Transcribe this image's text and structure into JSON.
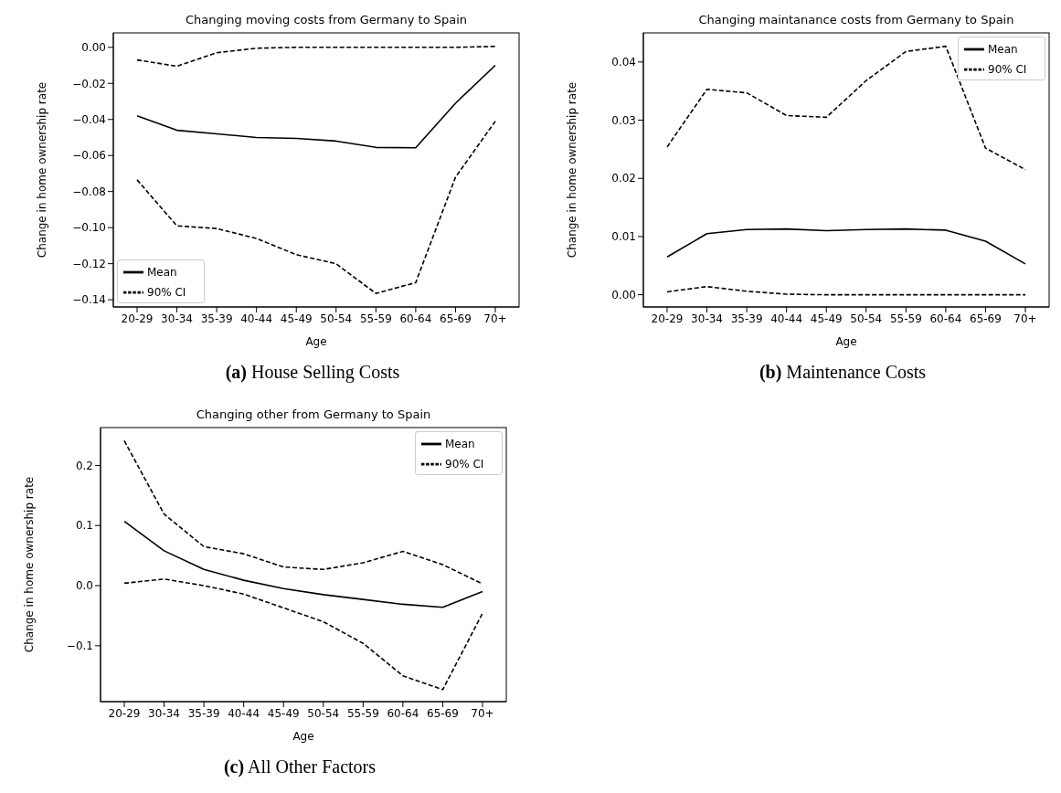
{
  "chart_data": [
    {
      "type": "line",
      "title": "Changing moving costs from Germany to Spain",
      "xlabel": "Age",
      "ylabel": "Change in home ownership rate",
      "annotations": [
        "(a) House Selling Costs"
      ],
      "categories": [
        "20-29",
        "30-34",
        "35-39",
        "40-44",
        "45-49",
        "50-54",
        "55-59",
        "60-64",
        "65-69",
        "70+"
      ],
      "series": [
        {
          "name": "Mean",
          "color": "#000000",
          "line_style": "solid",
          "values": [
            -0.038,
            -0.046,
            -0.048,
            -0.05,
            -0.0505,
            -0.052,
            -0.0555,
            -0.0557,
            -0.031,
            -0.01
          ]
        },
        {
          "name": "90% CI",
          "color": "#000000",
          "line_style": "dashed",
          "values": [
            -0.007,
            -0.0105,
            -0.003,
            -0.0005,
            0,
            0,
            0,
            0,
            0,
            0.0005
          ]
        },
        {
          "color": "#000000",
          "line_style": "dashed",
          "values": [
            -0.0735,
            -0.099,
            -0.1005,
            -0.106,
            -0.115,
            -0.12,
            -0.1365,
            -0.1305,
            -0.072,
            -0.041
          ]
        }
      ],
      "ylim": [
        -0.144,
        0.008
      ],
      "yticks": [
        {
          "value": -0.14,
          "label": "−0.14"
        },
        {
          "value": -0.12,
          "label": "−0.12"
        },
        {
          "value": -0.1,
          "label": "−0.10"
        },
        {
          "value": -0.08,
          "label": "−0.08"
        },
        {
          "value": -0.06,
          "label": "−0.06"
        },
        {
          "value": -0.04,
          "label": "−0.04"
        },
        {
          "value": -0.02,
          "label": "−0.02"
        },
        {
          "value": 0,
          "label": "0.00"
        }
      ],
      "grid": false,
      "legend": "bottom left",
      "marker": "none"
    },
    {
      "type": "line",
      "title": "Changing maintanance costs from Germany to Spain",
      "xlabel": "Age",
      "ylabel": "Change in home ownership rate",
      "annotations": [
        "(b) Maintenance Costs"
      ],
      "categories": [
        "20-29",
        "30-34",
        "35-39",
        "40-44",
        "45-49",
        "50-54",
        "55-59",
        "60-64",
        "65-69",
        "70+"
      ],
      "series": [
        {
          "name": "Mean",
          "color": "#000000",
          "line_style": "solid",
          "values": [
            0.0065,
            0.0105,
            0.0112,
            0.0113,
            0.011,
            0.0112,
            0.0113,
            0.0111,
            0.0092,
            0.0053
          ]
        },
        {
          "name": "90% CI",
          "color": "#000000",
          "line_style": "dashed",
          "values": [
            0.0254,
            0.0353,
            0.0347,
            0.0308,
            0.0305,
            0.0368,
            0.0418,
            0.0427,
            0.0252,
            0.0215
          ]
        },
        {
          "color": "#000000",
          "line_style": "dashed",
          "values": [
            0.0005,
            0.0014,
            0.0006,
            0.0001,
            0,
            0,
            0,
            0,
            0,
            0
          ]
        }
      ],
      "ylim": [
        -0.0021,
        0.045
      ],
      "yticks": [
        {
          "value": 0,
          "label": "0.00"
        },
        {
          "value": 0.01,
          "label": "0.01"
        },
        {
          "value": 0.02,
          "label": "0.02"
        },
        {
          "value": 0.03,
          "label": "0.03"
        },
        {
          "value": 0.04,
          "label": "0.04"
        }
      ],
      "grid": false,
      "legend": "top right",
      "marker": "none"
    },
    {
      "type": "line",
      "title": "Changing other from Germany to Spain",
      "xlabel": "Age",
      "ylabel": "Change in home ownership rate",
      "annotations": [
        "(c) All Other Factors"
      ],
      "categories": [
        "20-29",
        "30-34",
        "35-39",
        "40-44",
        "45-49",
        "50-54",
        "55-59",
        "60-64",
        "65-69",
        "70+"
      ],
      "series": [
        {
          "name": "Mean",
          "color": "#000000",
          "line_style": "solid",
          "values": [
            0.107,
            0.058,
            0.027,
            0.009,
            -0.005,
            -0.015,
            -0.023,
            -0.031,
            -0.036,
            -0.01
          ]
        },
        {
          "name": "90% CI",
          "color": "#000000",
          "line_style": "dashed",
          "values": [
            0.241,
            0.119,
            0.065,
            0.053,
            0.031,
            0.027,
            0.038,
            0.057,
            0.035,
            0.003
          ]
        },
        {
          "color": "#000000",
          "line_style": "dashed",
          "values": [
            0.004,
            0.011,
            0,
            -0.014,
            -0.037,
            -0.06,
            -0.096,
            -0.15,
            -0.173,
            -0.046
          ]
        }
      ],
      "ylim": [
        -0.193,
        0.263
      ],
      "yticks": [
        {
          "value": -0.1,
          "label": "−0.1"
        },
        {
          "value": 0,
          "label": "0.0"
        },
        {
          "value": 0.1,
          "label": "0.1"
        },
        {
          "value": 0.2,
          "label": "0.2"
        }
      ],
      "grid": false,
      "legend": "top right",
      "marker": "none"
    }
  ]
}
